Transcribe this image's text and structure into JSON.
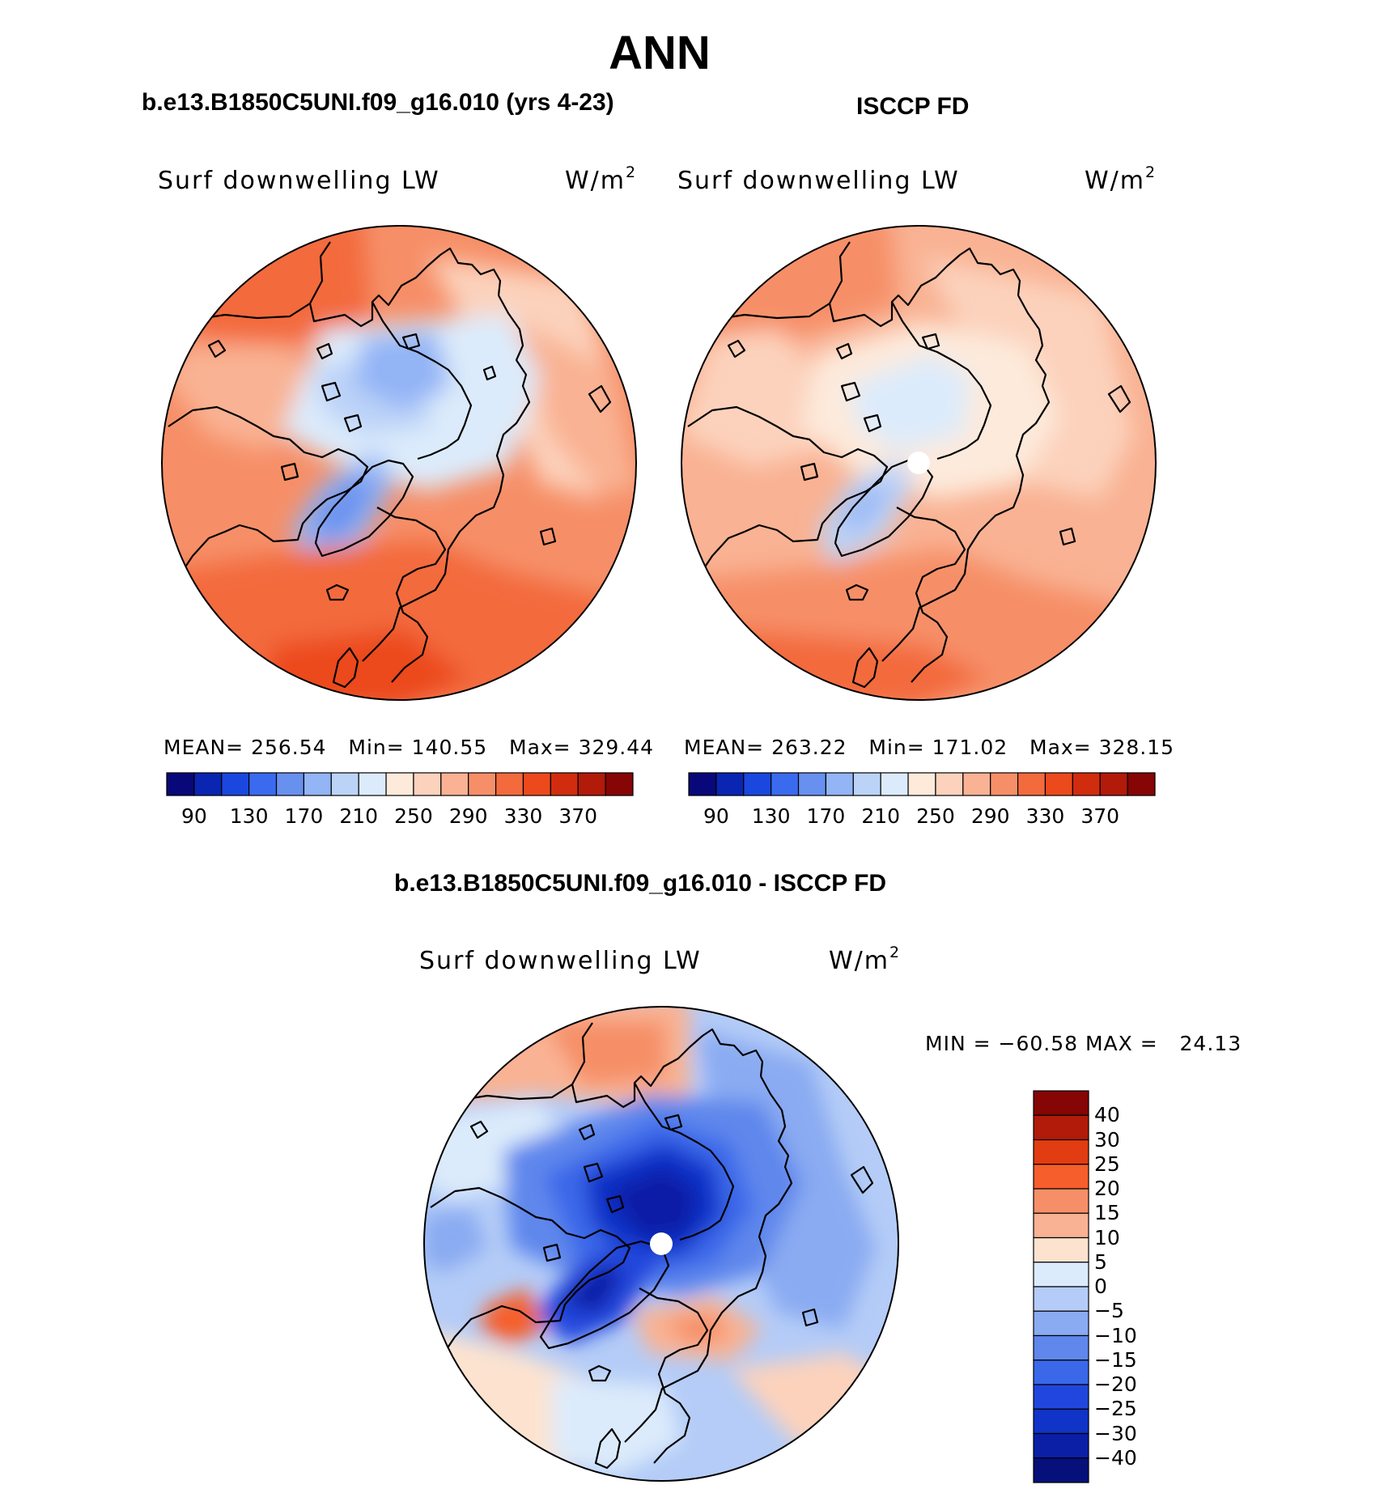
{
  "title": "ANN",
  "panels": [
    {
      "case_title": "b.e13.B1850C5UNI.f09_g16.010 (yrs 4-23)",
      "variable": "Surf downwelling LW",
      "units_base": "W/m",
      "units_exp": "2",
      "stats": {
        "mean_label": "MEAN=",
        "mean": "256.54",
        "min_label": "Min=",
        "min": "140.55",
        "max_label": "Max=",
        "max": "329.44"
      }
    },
    {
      "case_title": "ISCCP FD",
      "variable": "Surf downwelling LW",
      "units_base": "W/m",
      "units_exp": "2",
      "stats": {
        "mean_label": "MEAN=",
        "mean": "263.22",
        "min_label": "Min=",
        "min": "171.02",
        "max_label": "Max=",
        "max": "328.15"
      }
    }
  ],
  "diff_panel": {
    "case_title": "b.e13.B1850C5UNI.f09_g16.010 - ISCCP FD",
    "variable": "Surf downwelling LW",
    "units_base": "W/m",
    "units_exp": "2",
    "stats": {
      "min_label": "MIN =",
      "min": "−60.58",
      "max_label": "MAX =",
      "max": "24.13"
    }
  },
  "colorbar_abs": {
    "colors": [
      "#08087a",
      "#0a25b2",
      "#1a47dd",
      "#3a6aee",
      "#6790ef",
      "#93b4f5",
      "#bcd3f8",
      "#dcebfb",
      "#fdeadb",
      "#fcd2bc",
      "#f9b293",
      "#f68f68",
      "#f36a3d",
      "#ec4a1d",
      "#d12c0e",
      "#b21a0a",
      "#860505"
    ],
    "ticks": [
      "90",
      "130",
      "170",
      "210",
      "250",
      "290",
      "330",
      "370"
    ]
  },
  "colorbar_diff": {
    "colors": [
      "#860505",
      "#b21a0a",
      "#e23c12",
      "#f65e2b",
      "#f68f68",
      "#f9b293",
      "#fde3cf",
      "#dcebfb",
      "#b4ccf7",
      "#8aabf2",
      "#5f87ec",
      "#3a68e9",
      "#2046dd",
      "#1033c8",
      "#0a1fa6",
      "#06107a"
    ],
    "labels": [
      "40",
      "30",
      "25",
      "20",
      "15",
      "10",
      "5",
      "0",
      "−5",
      "−10",
      "−15",
      "−20",
      "−25",
      "−30",
      "−40"
    ]
  }
}
